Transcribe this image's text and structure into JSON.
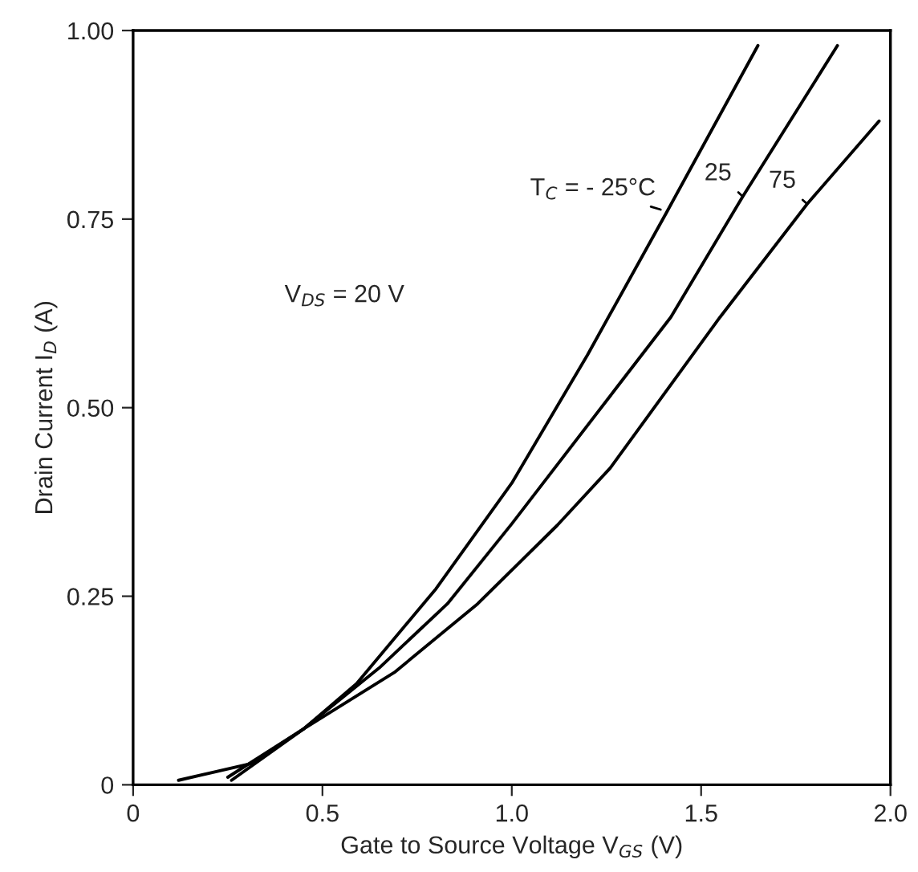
{
  "chart_data": {
    "type": "line",
    "xlabel": "Gate to Source Voltage V$_{GS}$ (V)",
    "ylabel": "Drain Current I$_{D}$ (A)",
    "annotations": [
      "V$_{DS}$ = 20 V"
    ],
    "xlim": [
      0,
      2.0
    ],
    "ylim": [
      0,
      1.0
    ],
    "xticks": [
      0,
      {
        "value": 0.5,
        "label": "0.5"
      },
      {
        "value": 1.0,
        "label": "1.0"
      },
      {
        "value": 1.5,
        "label": "1.5"
      },
      {
        "value": 2.0,
        "label": "2.0"
      }
    ],
    "yticks": [
      0,
      {
        "value": 0.25,
        "label": "0.25"
      },
      {
        "value": 0.5,
        "label": "0.50"
      },
      {
        "value": 0.75,
        "label": "0.75"
      },
      {
        "value": 1.0,
        "label": "1.00"
      }
    ],
    "grid": false,
    "marker": "none",
    "line_style": "solid",
    "series": [
      {
        "name": "T$_{C}$ = - 25°C",
        "color": "#000000",
        "x": [
          0.26,
          0.45,
          0.59,
          0.8,
          1.0,
          1.2,
          1.41,
          1.65
        ],
        "values": [
          0.006,
          0.074,
          0.134,
          0.26,
          0.4,
          0.57,
          0.76,
          0.98
        ]
      },
      {
        "name": "25",
        "color": "#000000",
        "x": [
          0.25,
          0.45,
          0.65,
          0.83,
          1.0,
          1.42,
          1.61,
          1.86
        ],
        "values": [
          0.01,
          0.074,
          0.155,
          0.24,
          0.346,
          0.62,
          0.78,
          0.98
        ]
      },
      {
        "name": "75",
        "color": "#000000",
        "x": [
          0.12,
          0.31,
          0.45,
          0.69,
          0.91,
          1.12,
          1.26,
          1.55,
          1.78,
          1.97
        ],
        "values": [
          0.006,
          0.028,
          0.074,
          0.149,
          0.24,
          0.344,
          0.42,
          0.62,
          0.77,
          0.88
        ]
      }
    ]
  }
}
